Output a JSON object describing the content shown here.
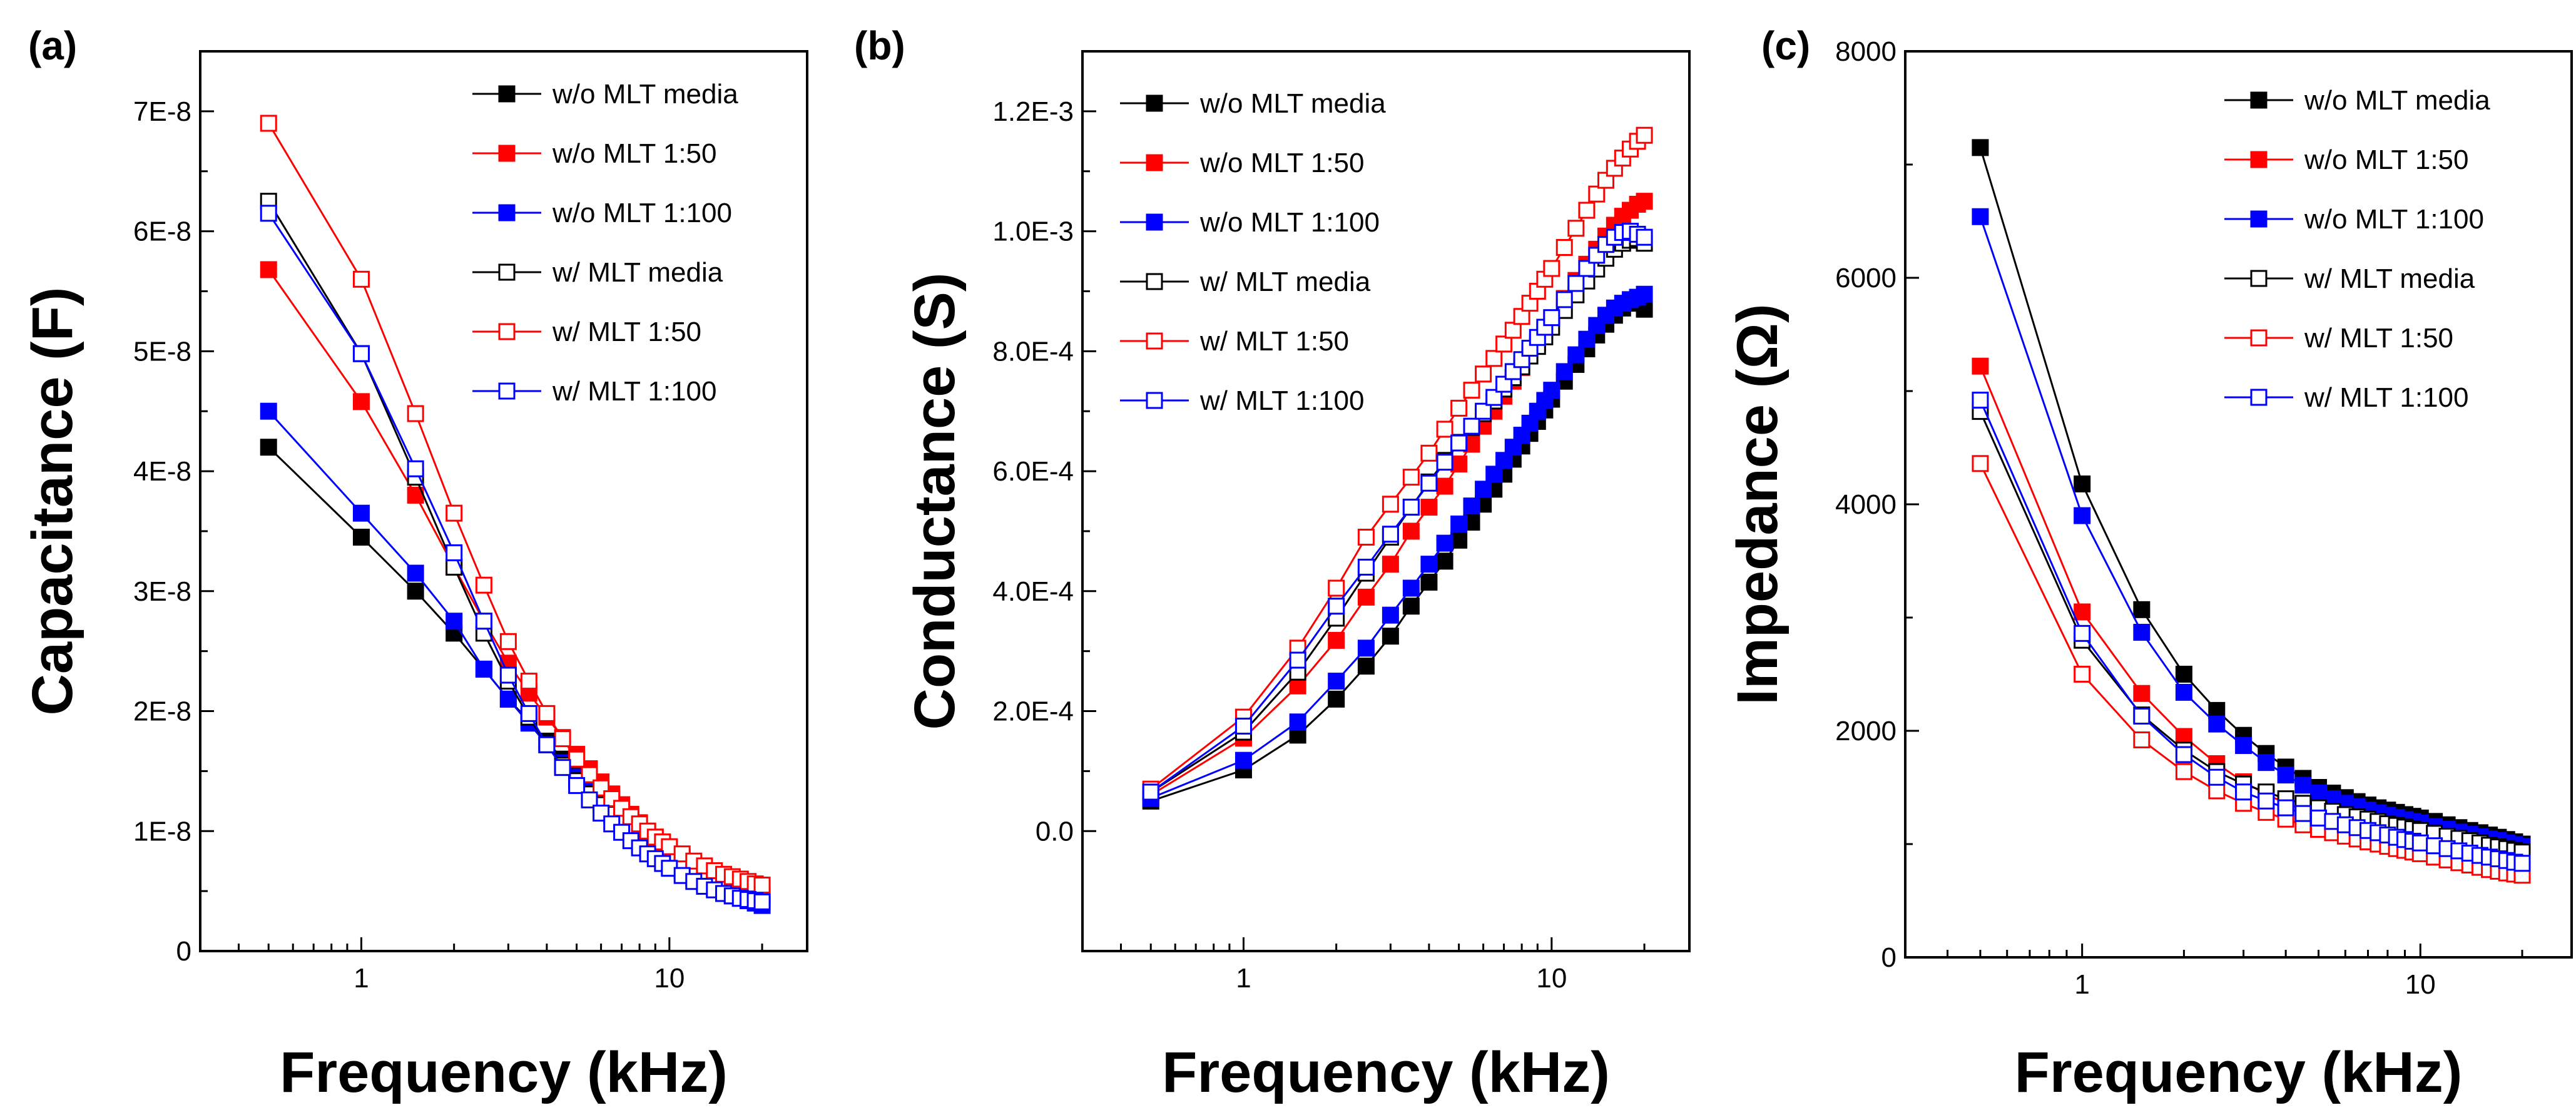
{
  "chart_data": [
    {
      "type": "line",
      "panel": "(a)",
      "title": "",
      "xlabel": "Frequency (kHz)",
      "ylabel": "Capacitance (F)",
      "xscale": "log",
      "xlim": [
        0.3,
        28
      ],
      "ylim": [
        0,
        7.5e-08
      ],
      "x_ticks": [
        1,
        10
      ],
      "x_tick_labels": [
        "1",
        "10"
      ],
      "y_ticks": [
        0,
        1e-08,
        2e-08,
        3e-08,
        4e-08,
        5e-08,
        6e-08,
        7e-08
      ],
      "y_tick_labels": [
        "0",
        "1E-8",
        "2E-8",
        "3E-8",
        "4E-8",
        "5E-8",
        "6E-8",
        "7E-8"
      ],
      "legend_position": "top-right",
      "x": [
        0.5,
        1,
        1.5,
        2,
        2.5,
        3,
        3.5,
        4,
        4.5,
        5,
        5.5,
        6,
        6.5,
        7,
        7.5,
        8,
        8.5,
        9,
        9.5,
        10,
        11,
        12,
        13,
        14,
        15,
        16,
        17,
        18,
        19,
        20
      ],
      "series": [
        {
          "name": "w/o MLT media",
          "color": "#000000",
          "marker": "filled-square",
          "values": [
            4.2e-08,
            3.45e-08,
            3e-08,
            2.65e-08,
            2.35e-08,
            2.1e-08,
            1.92e-08,
            1.75e-08,
            1.6e-08,
            1.48e-08,
            1.37e-08,
            1.27e-08,
            1.18e-08,
            1.1e-08,
            1.03e-08,
            9.7e-09,
            9.1e-09,
            8.6e-09,
            8.2e-09,
            7.8e-09,
            7.1e-09,
            6.5e-09,
            6e-09,
            5.6e-09,
            5.3e-09,
            5e-09,
            4.7e-09,
            4.5e-09,
            4.3e-09,
            4.1e-09
          ]
        },
        {
          "name": "w/o MLT 1:50",
          "color": "#ff0000",
          "marker": "filled-square",
          "values": [
            5.68e-08,
            4.58e-08,
            3.8e-08,
            3.2e-08,
            2.75e-08,
            2.4e-08,
            2.15e-08,
            1.95e-08,
            1.78e-08,
            1.64e-08,
            1.52e-08,
            1.41e-08,
            1.31e-08,
            1.22e-08,
            1.14e-08,
            1.07e-08,
            1e-08,
            9.5e-09,
            9e-09,
            8.6e-09,
            7.8e-09,
            7.2e-09,
            6.7e-09,
            6.3e-09,
            5.9e-09,
            5.6e-09,
            5.3e-09,
            5.1e-09,
            4.9e-09,
            4.7e-09
          ]
        },
        {
          "name": "w/o MLT 1:100",
          "color": "#0000ff",
          "marker": "filled-square",
          "values": [
            4.5e-08,
            3.65e-08,
            3.15e-08,
            2.75e-08,
            2.35e-08,
            2.1e-08,
            1.9e-08,
            1.72e-08,
            1.57e-08,
            1.45e-08,
            1.34e-08,
            1.24e-08,
            1.15e-08,
            1.07e-08,
            1e-08,
            9.4e-09,
            8.8e-09,
            8.3e-09,
            7.8e-09,
            7.4e-09,
            6.7e-09,
            6.1e-09,
            5.6e-09,
            5.2e-09,
            4.9e-09,
            4.6e-09,
            4.4e-09,
            4.2e-09,
            4e-09,
            3.8e-09
          ]
        },
        {
          "name": "w/ MLT media",
          "color": "#000000",
          "marker": "open-square",
          "values": [
            6.25e-08,
            4.98e-08,
            3.95e-08,
            3.2e-08,
            2.65e-08,
            2.25e-08,
            1.95e-08,
            1.72e-08,
            1.55e-08,
            1.42e-08,
            1.31e-08,
            1.22e-08,
            1.14e-08,
            1.07e-08,
            1.01e-08,
            9.5e-09,
            9e-09,
            8.6e-09,
            8.2e-09,
            7.8e-09,
            7.2e-09,
            6.7e-09,
            6.2e-09,
            5.8e-09,
            5.5e-09,
            5.2e-09,
            5e-09,
            4.8e-09,
            4.6e-09,
            4.5e-09
          ]
        },
        {
          "name": "w/ MLT 1:50",
          "color": "#ff0000",
          "marker": "open-square",
          "values": [
            6.9e-08,
            5.6e-08,
            4.48e-08,
            3.65e-08,
            3.05e-08,
            2.58e-08,
            2.25e-08,
            1.98e-08,
            1.77e-08,
            1.6e-08,
            1.47e-08,
            1.36e-08,
            1.27e-08,
            1.19e-08,
            1.12e-08,
            1.06e-08,
            1e-08,
            9.5e-09,
            9.1e-09,
            8.7e-09,
            8.1e-09,
            7.5e-09,
            7.1e-09,
            6.7e-09,
            6.4e-09,
            6.2e-09,
            6e-09,
            5.8e-09,
            5.6e-09,
            5.5e-09
          ]
        },
        {
          "name": "w/ MLT 1:100",
          "color": "#0000ff",
          "marker": "open-square",
          "values": [
            6.15e-08,
            4.98e-08,
            4.02e-08,
            3.32e-08,
            2.75e-08,
            2.3e-08,
            1.98e-08,
            1.72e-08,
            1.53e-08,
            1.38e-08,
            1.26e-08,
            1.15e-08,
            1.06e-08,
            9.9e-09,
            9.2e-09,
            8.6e-09,
            8.1e-09,
            7.7e-09,
            7.3e-09,
            6.9e-09,
            6.3e-09,
            5.8e-09,
            5.4e-09,
            5.1e-09,
            4.8e-09,
            4.6e-09,
            4.4e-09,
            4.3e-09,
            4.2e-09,
            4.1e-09
          ]
        }
      ]
    },
    {
      "type": "line",
      "panel": "(b)",
      "title": "",
      "xlabel": "Frequency (kHz)",
      "ylabel": "Conductance (S)",
      "xscale": "log",
      "xlim": [
        0.3,
        28
      ],
      "ylim": [
        -0.0002,
        0.0013
      ],
      "x_ticks": [
        1,
        10
      ],
      "x_tick_labels": [
        "1",
        "10"
      ],
      "y_ticks": [
        0,
        0.0002,
        0.0004,
        0.0006,
        0.0008,
        0.001,
        0.0012
      ],
      "y_tick_labels": [
        "0.0",
        "2.0E-4",
        "4.0E-4",
        "6.0E-4",
        "8.0E-4",
        "1.0E-3",
        "1.2E-3"
      ],
      "legend_position": "top-left",
      "x": [
        0.5,
        1,
        1.5,
        2,
        2.5,
        3,
        3.5,
        4,
        4.5,
        5,
        5.5,
        6,
        6.5,
        7,
        7.5,
        8,
        8.5,
        9,
        9.5,
        10,
        11,
        12,
        13,
        14,
        15,
        16,
        17,
        18,
        19,
        20
      ],
      "series": [
        {
          "name": "w/o MLT media",
          "color": "#000000",
          "marker": "filled-square",
          "values": [
            5e-05,
            0.000102,
            0.00016,
            0.00022,
            0.000275,
            0.000325,
            0.000375,
            0.000415,
            0.00045,
            0.000485,
            0.000515,
            0.000545,
            0.00057,
            0.000595,
            0.00062,
            0.000642,
            0.000663,
            0.000683,
            0.000702,
            0.00072,
            0.00075,
            0.000778,
            0.000804,
            0.000827,
            0.000845,
            0.00086,
            0.000872,
            0.00088,
            0.000886,
            0.00087
          ]
        },
        {
          "name": "w/o MLT 1:50",
          "color": "#ff0000",
          "marker": "filled-square",
          "values": [
            6e-05,
            0.000155,
            0.000242,
            0.000318,
            0.00039,
            0.000445,
            0.0005,
            0.00054,
            0.000575,
            0.000612,
            0.000645,
            0.000675,
            0.0007,
            0.000725,
            0.00075,
            0.000773,
            0.000795,
            0.000815,
            0.000835,
            0.000855,
            0.000888,
            0.000918,
            0.000945,
            0.00097,
            0.000992,
            0.00101,
            0.001025,
            0.001035,
            0.001045,
            0.00105
          ]
        },
        {
          "name": "w/o MLT 1:100",
          "color": "#0000ff",
          "marker": "filled-square",
          "values": [
            5.5e-05,
            0.000118,
            0.000182,
            0.00025,
            0.000305,
            0.00036,
            0.000405,
            0.000445,
            0.00048,
            0.000512,
            0.000542,
            0.00057,
            0.000595,
            0.000618,
            0.00064,
            0.00066,
            0.00068,
            0.0007,
            0.000718,
            0.000735,
            0.000766,
            0.000794,
            0.00082,
            0.000843,
            0.00086,
            0.000872,
            0.00088,
            0.000886,
            0.00089,
            0.000895
          ]
        },
        {
          "name": "w/ MLT media",
          "color": "#000000",
          "marker": "open-square",
          "values": [
            6.5e-05,
            0.000165,
            0.000265,
            0.000355,
            0.00043,
            0.00049,
            0.00054,
            0.000582,
            0.000618,
            0.000648,
            0.000673,
            0.000696,
            0.000717,
            0.000737,
            0.000756,
            0.000774,
            0.000792,
            0.000808,
            0.000824,
            0.00084,
            0.000868,
            0.000894,
            0.000917,
            0.000937,
            0.000955,
            0.00097,
            0.00098,
            0.000985,
            0.000988,
            0.00098
          ]
        },
        {
          "name": "w/ MLT 1:50",
          "color": "#ff0000",
          "marker": "open-square",
          "values": [
            7e-05,
            0.00019,
            0.000305,
            0.000405,
            0.00049,
            0.000545,
            0.00059,
            0.00063,
            0.00067,
            0.000705,
            0.000735,
            0.000762,
            0.000788,
            0.000812,
            0.000835,
            0.000858,
            0.00088,
            0.0009,
            0.00092,
            0.000938,
            0.000973,
            0.001005,
            0.001035,
            0.001062,
            0.001085,
            0.001105,
            0.001122,
            0.001137,
            0.00115,
            0.00116
          ]
        },
        {
          "name": "w/ MLT 1:100",
          "color": "#0000ff",
          "marker": "open-square",
          "values": [
            6.5e-05,
            0.000175,
            0.000285,
            0.000375,
            0.00044,
            0.000495,
            0.00054,
            0.00058,
            0.000615,
            0.000647,
            0.000675,
            0.0007,
            0.000723,
            0.000745,
            0.000766,
            0.000786,
            0.000805,
            0.000823,
            0.00084,
            0.000856,
            0.000886,
            0.000913,
            0.000938,
            0.00096,
            0.000978,
            0.00099,
            0.000998,
            0.001,
            0.000995,
            0.00099
          ]
        }
      ]
    },
    {
      "type": "line",
      "panel": "(c)",
      "title": "",
      "xlabel": "Frequency (kHz)",
      "ylabel": "Impedance (Ω)",
      "xscale": "log",
      "xlim": [
        0.3,
        28
      ],
      "ylim": [
        0,
        8000
      ],
      "x_ticks": [
        1,
        10
      ],
      "x_tick_labels": [
        "1",
        "10"
      ],
      "y_ticks": [
        0,
        2000,
        4000,
        6000,
        8000
      ],
      "y_tick_labels": [
        "0",
        "2000",
        "4000",
        "6000",
        "8000"
      ],
      "legend_position": "top-right",
      "x": [
        0.5,
        1,
        1.5,
        2,
        2.5,
        3,
        3.5,
        4,
        4.5,
        5,
        5.5,
        6,
        6.5,
        7,
        7.5,
        8,
        8.5,
        9,
        9.5,
        10,
        11,
        12,
        13,
        14,
        15,
        16,
        17,
        18,
        19,
        20
      ],
      "series": [
        {
          "name": "w/o MLT media",
          "color": "#000000",
          "marker": "filled-square",
          "values": [
            7150,
            4180,
            3070,
            2500,
            2180,
            1960,
            1800,
            1680,
            1580,
            1500,
            1450,
            1410,
            1375,
            1345,
            1320,
            1300,
            1280,
            1260,
            1245,
            1230,
            1200,
            1170,
            1145,
            1120,
            1100,
            1080,
            1060,
            1040,
            1020,
            1000
          ]
        },
        {
          "name": "w/o MLT 1:50",
          "color": "#ff0000",
          "marker": "filled-square",
          "values": [
            5220,
            3050,
            2330,
            1950,
            1710,
            1550,
            1440,
            1360,
            1300,
            1250,
            1210,
            1180,
            1155,
            1130,
            1110,
            1090,
            1075,
            1060,
            1045,
            1030,
            1005,
            980,
            960,
            940,
            920,
            900,
            880,
            860,
            845,
            830
          ]
        },
        {
          "name": "w/o MLT 1:100",
          "color": "#0000ff",
          "marker": "filled-square",
          "values": [
            6540,
            3900,
            2870,
            2340,
            2060,
            1870,
            1720,
            1610,
            1520,
            1450,
            1400,
            1360,
            1330,
            1300,
            1275,
            1255,
            1235,
            1215,
            1200,
            1185,
            1155,
            1130,
            1105,
            1085,
            1065,
            1045,
            1030,
            1010,
            995,
            980
          ]
        },
        {
          "name": "w/ MLT media",
          "color": "#000000",
          "marker": "open-square",
          "values": [
            4820,
            2800,
            2140,
            1830,
            1640,
            1530,
            1460,
            1400,
            1360,
            1320,
            1290,
            1260,
            1240,
            1220,
            1200,
            1180,
            1165,
            1150,
            1135,
            1120,
            1095,
            1070,
            1050,
            1030,
            1010,
            990,
            975,
            960,
            945,
            930
          ]
        },
        {
          "name": "w/ MLT 1:50",
          "color": "#ff0000",
          "marker": "open-square",
          "values": [
            4360,
            2500,
            1920,
            1640,
            1470,
            1360,
            1280,
            1220,
            1170,
            1130,
            1100,
            1070,
            1045,
            1020,
            1000,
            980,
            960,
            945,
            930,
            915,
            885,
            860,
            835,
            815,
            795,
            775,
            760,
            745,
            735,
            725
          ]
        },
        {
          "name": "w/ MLT 1:100",
          "color": "#0000ff",
          "marker": "open-square",
          "values": [
            4920,
            2860,
            2130,
            1790,
            1590,
            1460,
            1380,
            1320,
            1270,
            1230,
            1200,
            1170,
            1145,
            1120,
            1100,
            1080,
            1060,
            1040,
            1025,
            1010,
            985,
            960,
            940,
            920,
            900,
            885,
            870,
            855,
            840,
            830
          ]
        }
      ]
    }
  ]
}
